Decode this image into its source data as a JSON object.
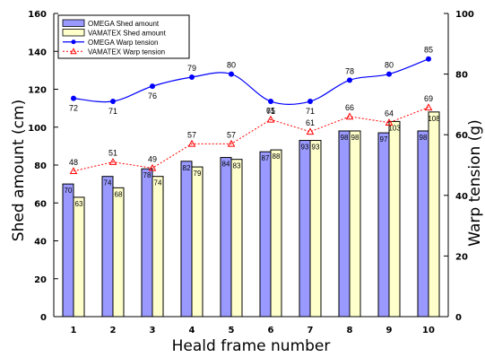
{
  "chart_data": {
    "type": "bar",
    "xlabel": "Heald frame number",
    "ylabel": "Shed amount (cm)",
    "y2label": "Warp tension (g)",
    "ylim": [
      0,
      160
    ],
    "y2lim": [
      0,
      100
    ],
    "yticks": [
      "0",
      "20",
      "40",
      "60",
      "80",
      "100",
      "120",
      "140",
      "160"
    ],
    "y2ticks": [
      "0",
      "20",
      "40",
      "60",
      "80",
      "100"
    ],
    "categories": [
      "1",
      "2",
      "3",
      "4",
      "5",
      "6",
      "7",
      "8",
      "9",
      "10"
    ],
    "grid": false,
    "legend_position": "top-left",
    "series": [
      {
        "name": "OMEGA Shed amount",
        "kind": "bar",
        "axis": "left",
        "color": "#9999ff",
        "values": [
          70,
          74,
          78,
          82,
          84,
          87,
          93,
          98,
          97,
          98
        ],
        "labels": [
          "70",
          "74",
          "78",
          "82",
          "84",
          "87",
          "93",
          "98",
          "97",
          "98"
        ]
      },
      {
        "name": "VAMATEX Shed amount",
        "kind": "bar",
        "axis": "left",
        "color": "#ffffcc",
        "values": [
          63,
          68,
          74,
          79,
          83,
          88,
          93,
          98,
          103,
          108
        ],
        "labels": [
          "63",
          "68",
          "74",
          "79",
          "83",
          "88",
          "93",
          "98",
          "103",
          "108"
        ]
      },
      {
        "name": "OMEGA Warp tension",
        "kind": "line",
        "axis": "right",
        "color": "#0000ff",
        "values": [
          72,
          71,
          76,
          79,
          80,
          71,
          71,
          78,
          80,
          85
        ],
        "labels": [
          "72",
          "71",
          "76",
          "79",
          "80",
          "71",
          "71",
          "78",
          "80",
          "85"
        ]
      },
      {
        "name": "VAMATEX Warp tension",
        "kind": "line",
        "axis": "right",
        "color": "#ff0000",
        "values": [
          48,
          51,
          49,
          57,
          57,
          65,
          61,
          66,
          64,
          69
        ],
        "labels": [
          "48",
          "51",
          "49",
          "57",
          "57",
          "65",
          "61",
          "66",
          "64",
          "69"
        ]
      }
    ]
  }
}
